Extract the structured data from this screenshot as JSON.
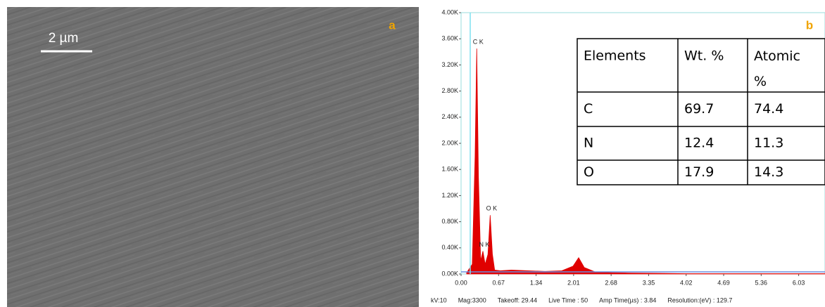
{
  "panel_a": {
    "label": "a",
    "scale_bar": "2 µm"
  },
  "chart_data": {
    "type": "area",
    "label": "b",
    "color": "#e00000",
    "x": [
      0.1,
      0.2,
      0.25,
      0.28,
      0.31,
      0.35,
      0.39,
      0.43,
      0.48,
      0.52,
      0.56,
      0.6,
      0.7,
      0.9,
      1.2,
      1.5,
      1.8,
      2.0,
      2.1,
      2.2,
      2.4,
      2.7,
      3.0,
      3.5,
      4.0,
      5.0,
      6.0,
      6.5
    ],
    "values": [
      20,
      150,
      1800,
      3450,
      1500,
      200,
      350,
      150,
      300,
      900,
      300,
      60,
      50,
      60,
      50,
      40,
      50,
      120,
      250,
      100,
      30,
      20,
      15,
      10,
      5,
      5,
      5,
      5
    ],
    "xlim": [
      0,
      6.5
    ],
    "ylim": [
      0,
      4000
    ],
    "xticks": [
      {
        "value": 0,
        "label": "0.00"
      },
      0.67,
      1.34,
      2.01,
      2.68,
      3.35,
      4.02,
      4.69,
      5.36,
      6.03
    ],
    "yticks": [
      {
        "value": 0,
        "label": "0.00K"
      },
      {
        "value": 400,
        "label": "0.40K"
      },
      {
        "value": 800,
        "label": "0.80K"
      },
      {
        "value": 1200,
        "label": "1.20K"
      },
      {
        "value": 1600,
        "label": "1.60K"
      },
      {
        "value": 2000,
        "label": "2.00K"
      },
      {
        "value": 2400,
        "label": "2.40K"
      },
      {
        "value": 2800,
        "label": "2.80K"
      },
      {
        "value": 3200,
        "label": "3.20K"
      },
      {
        "value": 3600,
        "label": "3.60K"
      },
      {
        "value": 4000,
        "label": "4.00K"
      }
    ],
    "annotations": [
      {
        "text": "C K",
        "x": 0.28,
        "y": 3450
      },
      {
        "text": "N K",
        "x": 0.39,
        "y": 350
      },
      {
        "text": "O K",
        "x": 0.52,
        "y": 900
      }
    ],
    "footer": [
      "kV:10",
      "Mag:3300",
      "Takeoff: 29.44",
      "Live Time : 50",
      "Amp Time(µs) : 3.84",
      "Resolution:(eV) : 129.7"
    ]
  },
  "table": {
    "header": [
      "Elements",
      "Wt. %",
      "Atomic %"
    ],
    "rows": [
      [
        "C",
        "69.7",
        "74.4"
      ],
      [
        "N",
        "12.4",
        "11.3"
      ],
      [
        "O",
        "17.9",
        "14.3"
      ]
    ]
  }
}
